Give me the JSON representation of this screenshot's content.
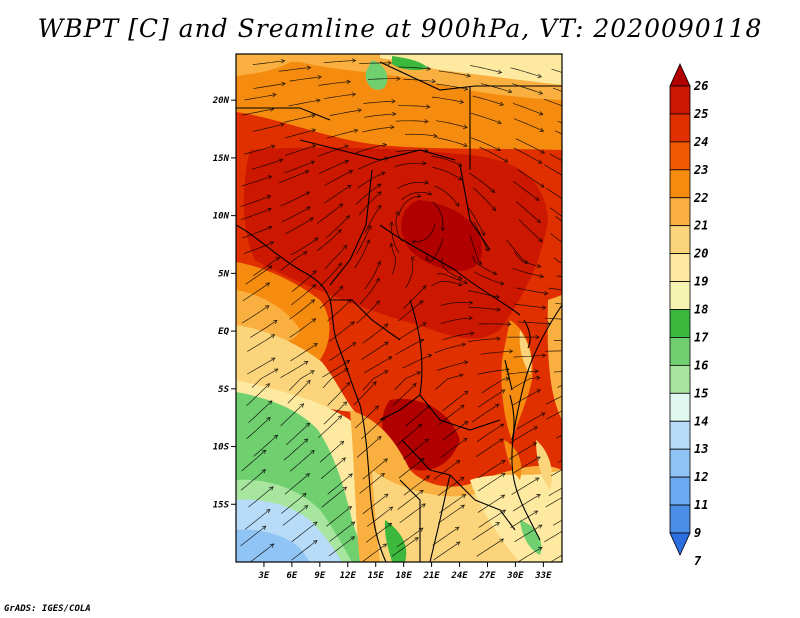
{
  "title": "WBPT [C] and Sreamline at 900hPa, VT: 2020090118",
  "credit": "GrADS: IGES/COLA",
  "map": {
    "lon_range": [
      0,
      35
    ],
    "lat_range": [
      -20,
      24
    ],
    "lat_ticks": [
      {
        "lat": 20,
        "label": "20N"
      },
      {
        "lat": 15,
        "label": "15N"
      },
      {
        "lat": 10,
        "label": "10N"
      },
      {
        "lat": 5,
        "label": "5N"
      },
      {
        "lat": 0,
        "label": "EQ"
      },
      {
        "lat": -5,
        "label": "5S"
      },
      {
        "lat": -10,
        "label": "10S"
      },
      {
        "lat": -15,
        "label": "15S"
      }
    ],
    "lon_ticks": [
      {
        "lon": 3,
        "label": "3E"
      },
      {
        "lon": 6,
        "label": "6E"
      },
      {
        "lon": 9,
        "label": "9E"
      },
      {
        "lon": 12,
        "label": "12E"
      },
      {
        "lon": 15,
        "label": "15E"
      },
      {
        "lon": 18,
        "label": "18E"
      },
      {
        "lon": 21,
        "label": "21E"
      },
      {
        "lon": 24,
        "label": "24E"
      },
      {
        "lon": 27,
        "label": "27E"
      },
      {
        "lon": 30,
        "label": "30E"
      },
      {
        "lon": 33,
        "label": "33E"
      }
    ]
  },
  "colorbar": {
    "levels": [
      "26",
      "25",
      "24",
      "23",
      "22",
      "21",
      "20",
      "19",
      "18",
      "17",
      "16",
      "15",
      "14",
      "13",
      "12",
      "11",
      "9",
      "7"
    ],
    "colors": [
      "#b00000",
      "#cc1800",
      "#e03000",
      "#ef5a00",
      "#f58c10",
      "#f9b040",
      "#fbd47c",
      "#fdeaa0",
      "#f4f4b0",
      "#3cb83c",
      "#70d070",
      "#a8e6a0",
      "#e0f8f0",
      "#b8dcf8",
      "#90c4f4",
      "#6aaaf0",
      "#4a8ee8",
      "#2a6ee0"
    ]
  }
}
